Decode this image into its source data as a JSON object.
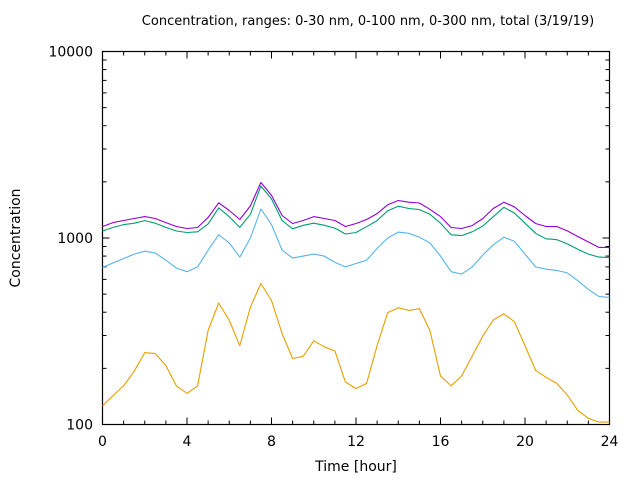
{
  "chart_data": {
    "type": "line",
    "title": "Concentration, ranges: 0-30 nm, 0-100 nm, 0-300 nm, total (3/19/19)",
    "xlabel": "Time [hour]",
    "ylabel": "Concentration",
    "xlim": [
      0,
      24
    ],
    "ylim": [
      100,
      10000
    ],
    "yscale": "log",
    "grid": false,
    "legend": "none",
    "x_ticks": [
      0,
      4,
      8,
      12,
      16,
      20,
      24
    ],
    "x_tick_labels": [
      "0",
      "4",
      "8",
      "12",
      "16",
      "20",
      "24"
    ],
    "y_ticks": [
      100,
      1000,
      10000
    ],
    "y_tick_labels": [
      "100",
      "1000",
      "10000"
    ],
    "x": [
      0,
      0.5,
      1,
      1.5,
      2,
      2.5,
      3,
      3.5,
      4,
      4.5,
      5,
      5.5,
      6,
      6.5,
      7,
      7.5,
      8,
      8.5,
      9,
      9.5,
      10,
      10.5,
      11,
      11.5,
      12,
      12.5,
      13,
      13.5,
      14,
      14.5,
      15,
      15.5,
      16,
      16.5,
      17,
      17.5,
      18,
      18.5,
      19,
      19.5,
      20,
      20.5,
      21,
      21.5,
      22,
      22.5,
      23,
      23.5,
      24
    ],
    "series": [
      {
        "name": "0-30 nm",
        "color": "#e69f00",
        "values": [
          126,
          143,
          161,
          193,
          243,
          240,
          207,
          161,
          147,
          161,
          319,
          448,
          361,
          265,
          426,
          570,
          462,
          307,
          226,
          232,
          281,
          261,
          248,
          169,
          156,
          166,
          265,
          398,
          423,
          409,
          418,
          319,
          182,
          161,
          182,
          233,
          298,
          364,
          392,
          356,
          265,
          195,
          179,
          166,
          144,
          119,
          108,
          103,
          103
        ]
      },
      {
        "name": "0-100 nm",
        "color": "#56b4e9",
        "values": [
          695,
          735,
          775,
          820,
          850,
          830,
          760,
          690,
          660,
          700,
          860,
          1040,
          940,
          790,
          1000,
          1430,
          1180,
          860,
          780,
          800,
          820,
          800,
          740,
          700,
          730,
          760,
          880,
          1000,
          1075,
          1060,
          1010,
          940,
          800,
          660,
          640,
          700,
          810,
          920,
          1010,
          960,
          820,
          700,
          680,
          670,
          650,
          590,
          530,
          485,
          480
        ]
      },
      {
        "name": "0-300 nm",
        "color": "#009e73",
        "values": [
          1090,
          1140,
          1180,
          1200,
          1240,
          1200,
          1140,
          1090,
          1070,
          1080,
          1190,
          1450,
          1300,
          1140,
          1340,
          1900,
          1620,
          1240,
          1120,
          1170,
          1200,
          1170,
          1130,
          1050,
          1070,
          1150,
          1240,
          1400,
          1480,
          1440,
          1420,
          1340,
          1200,
          1040,
          1030,
          1080,
          1160,
          1300,
          1460,
          1360,
          1200,
          1060,
          990,
          980,
          930,
          870,
          820,
          790,
          785
        ]
      },
      {
        "name": "total",
        "color": "#9400d3",
        "values": [
          1153,
          1210,
          1241,
          1272,
          1303,
          1272,
          1210,
          1153,
          1125,
          1139,
          1288,
          1545,
          1404,
          1257,
          1487,
          1985,
          1692,
          1320,
          1196,
          1241,
          1303,
          1272,
          1241,
          1153,
          1196,
          1257,
          1352,
          1506,
          1589,
          1556,
          1540,
          1425,
          1303,
          1139,
          1125,
          1166,
          1272,
          1440,
          1556,
          1469,
          1320,
          1196,
          1153,
          1153,
          1091,
          1019,
          952,
          890,
          890
        ]
      }
    ]
  }
}
